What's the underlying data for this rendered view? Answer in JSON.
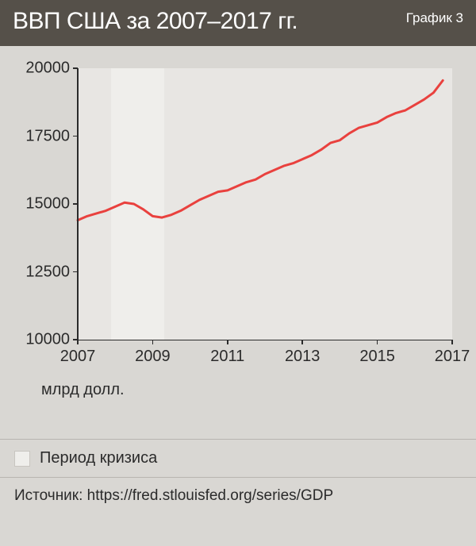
{
  "header": {
    "title": "ВВП США за 2007–2017 гг.",
    "chart_label": "График 3"
  },
  "chart": {
    "type": "line",
    "background_color": "#d9d7d3",
    "plot_bg_color": "#e8e6e3",
    "axis_color": "#2b2b2b",
    "line_color": "#e9413e",
    "line_width": 3,
    "xlim": [
      2007,
      2017
    ],
    "ylim": [
      10000,
      20000
    ],
    "xticks": [
      2007,
      2009,
      2011,
      2013,
      2015,
      2017
    ],
    "yticks": [
      10000,
      12500,
      15000,
      17500,
      20000
    ],
    "tick_fontsize": 20,
    "crisis_band": {
      "start": 2007.9,
      "end": 2009.3,
      "color": "#efeeeb"
    },
    "series": {
      "x": [
        2007.0,
        2007.25,
        2007.5,
        2007.75,
        2008.0,
        2008.25,
        2008.5,
        2008.75,
        2009.0,
        2009.25,
        2009.5,
        2009.75,
        2010.0,
        2010.25,
        2010.5,
        2010.75,
        2011.0,
        2011.25,
        2011.5,
        2011.75,
        2012.0,
        2012.25,
        2012.5,
        2012.75,
        2013.0,
        2013.25,
        2013.5,
        2013.75,
        2014.0,
        2014.25,
        2014.5,
        2014.75,
        2015.0,
        2015.25,
        2015.5,
        2015.75,
        2016.0,
        2016.25,
        2016.5,
        2016.75
      ],
      "y": [
        14400,
        14550,
        14650,
        14750,
        14900,
        15050,
        15000,
        14800,
        14550,
        14500,
        14600,
        14750,
        14950,
        15150,
        15300,
        15450,
        15500,
        15650,
        15800,
        15900,
        16100,
        16250,
        16400,
        16500,
        16650,
        16800,
        17000,
        17250,
        17350,
        17600,
        17800,
        17900,
        18000,
        18200,
        18350,
        18450,
        18650,
        18850,
        19100,
        19550
      ]
    }
  },
  "unit_label": "млрд долл.",
  "legend": {
    "swatch_color": "#efeeeb",
    "label": "Период кризиса"
  },
  "source": "Источник: https://fred.stlouisfed.org/series/GDP"
}
